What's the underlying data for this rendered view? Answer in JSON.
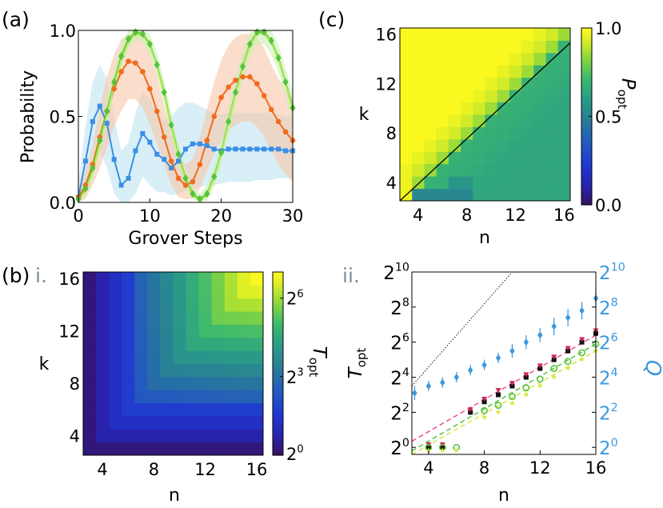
{
  "panel_labels": {
    "a": "(a)",
    "b": "(b)",
    "c": "(c)",
    "b_i": "i.",
    "b_ii": "ii."
  },
  "colors": {
    "blue": "#3a8ee6",
    "orange": "#f26b1d",
    "green": "#55c43a",
    "lightgreen": "#b6ea56",
    "band_blue": "#bfe4f2",
    "band_orange": "#f6c7a9",
    "band_green": "#c9f0b0",
    "pink": "#f0508a",
    "red": "#d2244a",
    "black": "#111111",
    "yellow": "#d7e63c",
    "ytick_blue": "#3a98e0",
    "gray_label": "#7b8f99"
  },
  "chart_data": [
    {
      "id": "a",
      "type": "line",
      "title": "",
      "xlabel": "Grover Steps",
      "ylabel": "Probability",
      "xlim": [
        0,
        30
      ],
      "ylim": [
        0,
        1
      ],
      "xticks": [
        0,
        10,
        20,
        30
      ],
      "xtick_labels": [
        "0",
        "10",
        "20",
        "30"
      ],
      "yticks": [
        0,
        0.5,
        1.0
      ],
      "ytick_labels": [
        "0.0",
        "0.5",
        "1.0"
      ],
      "x": [
        0,
        1,
        2,
        3,
        4,
        5,
        6,
        7,
        8,
        9,
        10,
        11,
        12,
        13,
        14,
        15,
        16,
        17,
        18,
        19,
        20,
        21,
        22,
        23,
        24,
        25,
        26,
        27,
        28,
        29,
        30
      ],
      "series": [
        {
          "name": "blue",
          "color_key": "blue",
          "marker": "square",
          "values": [
            0.03,
            0.24,
            0.47,
            0.56,
            0.46,
            0.25,
            0.1,
            0.14,
            0.3,
            0.4,
            0.35,
            0.28,
            0.25,
            0.2,
            0.24,
            0.31,
            0.34,
            0.34,
            0.33,
            0.31,
            0.3,
            0.31,
            0.31,
            0.31,
            0.31,
            0.31,
            0.31,
            0.31,
            0.31,
            0.3,
            0.3
          ],
          "band_lower": [
            0.0,
            0.05,
            0.2,
            0.3,
            0.2,
            0.05,
            0.0,
            0.0,
            0.05,
            0.15,
            0.1,
            0.06,
            0.06,
            0.04,
            0.05,
            0.07,
            0.08,
            0.09,
            0.1,
            0.1,
            0.11,
            0.12,
            0.12,
            0.12,
            0.12,
            0.13,
            0.13,
            0.13,
            0.14,
            0.14,
            0.14
          ],
          "band_upper": [
            0.12,
            0.45,
            0.7,
            0.8,
            0.72,
            0.5,
            0.3,
            0.35,
            0.52,
            0.64,
            0.6,
            0.52,
            0.48,
            0.5,
            0.55,
            0.58,
            0.58,
            0.56,
            0.54,
            0.52,
            0.51,
            0.52,
            0.52,
            0.52,
            0.52,
            0.52,
            0.52,
            0.52,
            0.51,
            0.5,
            0.5
          ],
          "band_color_key": "band_blue"
        },
        {
          "name": "orange",
          "color_key": "orange",
          "marker": "circle",
          "values": [
            0.03,
            0.1,
            0.22,
            0.38,
            0.53,
            0.66,
            0.76,
            0.82,
            0.81,
            0.76,
            0.66,
            0.53,
            0.38,
            0.24,
            0.14,
            0.1,
            0.12,
            0.22,
            0.36,
            0.5,
            0.61,
            0.67,
            0.71,
            0.73,
            0.73,
            0.69,
            0.62,
            0.54,
            0.47,
            0.41,
            0.36
          ],
          "band_lower": [
            0.0,
            0.02,
            0.1,
            0.2,
            0.32,
            0.44,
            0.53,
            0.6,
            0.6,
            0.55,
            0.45,
            0.34,
            0.22,
            0.1,
            0.03,
            0.02,
            0.02,
            0.08,
            0.18,
            0.28,
            0.36,
            0.42,
            0.45,
            0.47,
            0.47,
            0.44,
            0.38,
            0.3,
            0.22,
            0.16,
            0.12
          ],
          "band_upper": [
            0.06,
            0.18,
            0.34,
            0.55,
            0.73,
            0.86,
            0.95,
            0.98,
            0.98,
            0.96,
            0.88,
            0.73,
            0.56,
            0.4,
            0.28,
            0.22,
            0.25,
            0.38,
            0.54,
            0.7,
            0.83,
            0.91,
            0.96,
            0.98,
            0.98,
            0.96,
            0.9,
            0.8,
            0.72,
            0.66,
            0.6
          ],
          "band_color_key": "band_orange"
        },
        {
          "name": "green",
          "color_key": "green",
          "marker": "diamond",
          "values": [
            0.02,
            0.08,
            0.2,
            0.36,
            0.53,
            0.7,
            0.85,
            0.95,
            0.99,
            0.98,
            0.92,
            0.8,
            0.64,
            0.45,
            0.28,
            0.14,
            0.05,
            0.02,
            0.05,
            0.15,
            0.29,
            0.47,
            0.64,
            0.79,
            0.92,
            0.99,
            0.99,
            0.94,
            0.84,
            0.7,
            0.55
          ],
          "band_lower": [
            0.0,
            0.04,
            0.14,
            0.29,
            0.46,
            0.63,
            0.78,
            0.89,
            0.94,
            0.93,
            0.86,
            0.73,
            0.57,
            0.38,
            0.22,
            0.09,
            0.02,
            0.0,
            0.01,
            0.09,
            0.22,
            0.39,
            0.56,
            0.71,
            0.84,
            0.92,
            0.92,
            0.86,
            0.76,
            0.62,
            0.47
          ],
          "band_upper": [
            0.05,
            0.12,
            0.26,
            0.43,
            0.6,
            0.77,
            0.92,
            1.0,
            1.0,
            1.0,
            0.98,
            0.87,
            0.71,
            0.52,
            0.34,
            0.19,
            0.09,
            0.05,
            0.1,
            0.21,
            0.36,
            0.55,
            0.72,
            0.87,
            0.99,
            1.0,
            1.0,
            1.0,
            0.92,
            0.78,
            0.63
          ],
          "band_color_key": "band_green"
        },
        {
          "name": "lightgreen",
          "color_key": "lightgreen",
          "marker": "none",
          "values": [
            0.01,
            0.07,
            0.18,
            0.34,
            0.51,
            0.68,
            0.83,
            0.93,
            0.98,
            0.97,
            0.91,
            0.79,
            0.63,
            0.44,
            0.27,
            0.13,
            0.04,
            0.01,
            0.04,
            0.14,
            0.28,
            0.46,
            0.63,
            0.78,
            0.91,
            0.98,
            0.98,
            0.93,
            0.83,
            0.69,
            0.54
          ],
          "band_lower": null,
          "band_upper": null,
          "band_color_key": null
        }
      ]
    },
    {
      "id": "b_i",
      "type": "heatmap",
      "title": "",
      "xlabel": "n",
      "ylabel": "k",
      "x_range": [
        3,
        16
      ],
      "y_range": [
        3,
        16
      ],
      "xticks": [
        4,
        8,
        12,
        16
      ],
      "xtick_labels": [
        "4",
        "8",
        "12",
        "16"
      ],
      "yticks": [
        4,
        8,
        12,
        16
      ],
      "ytick_labels": [
        "4",
        "8",
        "12",
        "16"
      ],
      "colormap": "viridis_like",
      "colorbar_label": "T_opt",
      "colorbar_range_log2": [
        0,
        7
      ],
      "colorbar_ticks": [
        0,
        3,
        6
      ],
      "colorbar_tick_labels": [
        "2",
        "2",
        "2"
      ],
      "colorbar_tick_exponents": [
        "0",
        "3",
        "6"
      ],
      "value_rule": "log2(T_opt) ≈ 0.5*min(n,k) - 1 (clipped at 0)"
    },
    {
      "id": "c",
      "type": "heatmap",
      "title": "",
      "xlabel": "n",
      "ylabel": "k",
      "x_range": [
        3,
        16
      ],
      "y_range": [
        3,
        16
      ],
      "xticks": [
        4,
        8,
        12,
        16
      ],
      "xtick_labels": [
        "4",
        "8",
        "12",
        "16"
      ],
      "yticks": [
        4,
        8,
        12,
        16
      ],
      "ytick_labels": [
        "4",
        "8",
        "12",
        "16"
      ],
      "colormap": "viridis_like",
      "colorbar_label": "P_opt",
      "colorbar_range": [
        0,
        1
      ],
      "colorbar_ticks": [
        0,
        0.5,
        1.0
      ],
      "colorbar_tick_labels": [
        "0.0",
        "0.5",
        "1.0"
      ],
      "diagonal_line": {
        "from": [
          3,
          3
        ],
        "to": [
          16,
          15
        ]
      },
      "value_rule": "P_opt ≈ 1.0 for k>n+2, ~0.95 near diagonal, ~0.62-0.70 below diagonal, ~0.5 at bottom low-n cells"
    },
    {
      "id": "b_ii",
      "type": "scatter",
      "title": "",
      "xlabel": "n",
      "ylabel_left": "T_opt",
      "ylabel_right": "Q",
      "xlim": [
        2.8,
        16
      ],
      "ylim_log2": [
        -0.4,
        10
      ],
      "xticks": [
        4,
        8,
        12,
        16
      ],
      "xtick_labels": [
        "4",
        "8",
        "12",
        "16"
      ],
      "yticks_log2": [
        0,
        2,
        4,
        6,
        8,
        10
      ],
      "ytick_base": "2",
      "ytick_exponents": [
        "0",
        "2",
        "4",
        "6",
        "8",
        "10"
      ],
      "series": [
        {
          "name": "Q",
          "axis": "right",
          "color_key": "ytick_blue",
          "marker": "diamond",
          "x": [
            3,
            4,
            5,
            6,
            7,
            8,
            9,
            10,
            11,
            12,
            13,
            14,
            15,
            16
          ],
          "log2_values": [
            3.1,
            3.5,
            3.7,
            4.0,
            4.4,
            4.7,
            5.1,
            5.5,
            6.0,
            6.4,
            6.9,
            7.4,
            7.8,
            8.5
          ],
          "err_low": [
            0.4,
            0.3,
            0.3,
            0.3,
            0.3,
            0.3,
            0.3,
            0.4,
            0.4,
            0.4,
            0.5,
            0.5,
            0.5,
            0.6
          ],
          "err_high": [
            0.4,
            0.3,
            0.3,
            0.3,
            0.3,
            0.3,
            0.3,
            0.4,
            0.4,
            0.4,
            0.5,
            0.5,
            0.5,
            0.6
          ]
        },
        {
          "name": "T_opt black",
          "axis": "left",
          "color_key": "black",
          "marker": "square",
          "x": [
            4,
            5,
            7,
            8,
            9,
            10,
            11,
            12,
            13,
            14,
            15,
            16
          ],
          "log2_values": [
            0,
            0,
            2,
            2.6,
            3,
            3.5,
            4,
            4.5,
            5,
            5.5,
            6,
            6.5
          ]
        },
        {
          "name": "T_opt red",
          "axis": "left",
          "color_key": "red",
          "marker": "triangle-down",
          "x": [
            4,
            5,
            7,
            8,
            9,
            10,
            11,
            12,
            13,
            14,
            15,
            16
          ],
          "log2_values": [
            0.1,
            0.1,
            2.1,
            2.7,
            3.2,
            3.6,
            4.1,
            4.6,
            5.1,
            5.6,
            6.1,
            6.6
          ]
        },
        {
          "name": "T_opt green",
          "axis": "left",
          "color_key": "green",
          "marker": "circle",
          "x": [
            4,
            5,
            6,
            8,
            9,
            10,
            11,
            12,
            13,
            14,
            15,
            16
          ],
          "log2_values": [
            0,
            0,
            0,
            2.1,
            2.4,
            2.9,
            3.4,
            3.9,
            4.5,
            4.9,
            5.4,
            5.9
          ]
        },
        {
          "name": "T_opt yellow",
          "axis": "left",
          "color_key": "yellow",
          "marker": "star",
          "x": [
            4,
            5,
            6,
            8,
            9,
            10,
            11,
            12,
            13,
            14,
            15,
            16
          ],
          "log2_values": [
            0,
            0,
            0,
            1.9,
            2.2,
            2.7,
            3.2,
            3.7,
            4.2,
            4.7,
            5.2,
            5.7
          ]
        }
      ],
      "fit_lines": [
        {
          "color_key": "pink",
          "style": "dashed",
          "from": [
            2.8,
            0.35
          ],
          "to": [
            16,
            6.4
          ]
        },
        {
          "color_key": "green",
          "style": "dashed",
          "from": [
            2.8,
            -0.2
          ],
          "to": [
            16,
            5.9
          ]
        },
        {
          "color_key": "yellow",
          "style": "dashed",
          "from": [
            2.8,
            -0.4
          ],
          "to": [
            16,
            5.5
          ]
        },
        {
          "color_key": "black",
          "style": "dotted",
          "from": [
            2.8,
            3.5
          ],
          "to": [
            10,
            10
          ]
        }
      ]
    }
  ]
}
